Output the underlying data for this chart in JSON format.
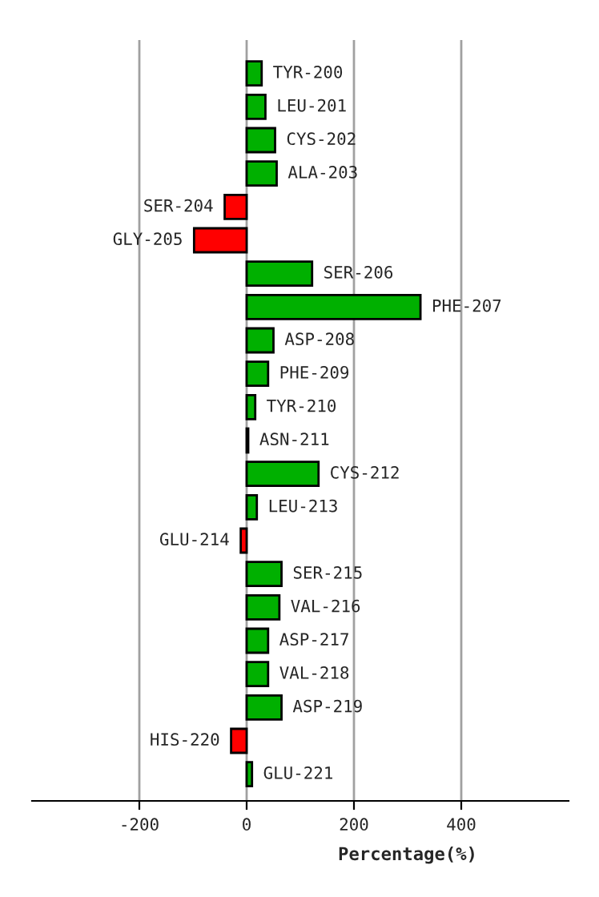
{
  "chart_data": {
    "type": "bar",
    "orientation": "horizontal",
    "xlabel": "Percentage(%)",
    "categories": [
      "TYR-200",
      "LEU-201",
      "CYS-202",
      "ALA-203",
      "SER-204",
      "GLY-205",
      "SER-206",
      "PHE-207",
      "ASP-208",
      "PHE-209",
      "TYR-210",
      "ASN-211",
      "CYS-212",
      "LEU-213",
      "GLU-214",
      "SER-215",
      "VAL-216",
      "ASP-217",
      "VAL-218",
      "ASP-219",
      "HIS-220",
      "GLU-221"
    ],
    "values": [
      28,
      35,
      53,
      56,
      -41,
      -98,
      122,
      324,
      50,
      40,
      16,
      3,
      134,
      19,
      -11,
      65,
      61,
      40,
      40,
      65,
      -29,
      10
    ],
    "colors": [
      "#00b000",
      "#00b000",
      "#00b000",
      "#00b000",
      "#ff0000",
      "#ff0000",
      "#00b000",
      "#00b000",
      "#00b000",
      "#00b000",
      "#00b000",
      "#00b000",
      "#00b000",
      "#00b000",
      "#ff0000",
      "#00b000",
      "#00b000",
      "#00b000",
      "#00b000",
      "#00b000",
      "#ff0000",
      "#00b000"
    ],
    "xlim": [
      -400,
      600
    ],
    "xticks": [
      -200,
      0,
      200,
      400
    ],
    "grid": "x"
  }
}
